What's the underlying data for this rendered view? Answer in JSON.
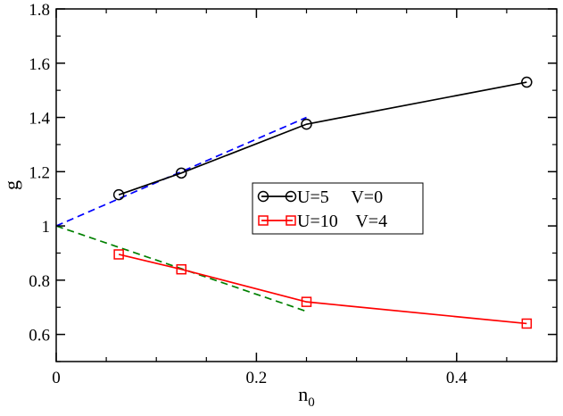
{
  "chart_data": {
    "type": "line",
    "xlabel": "n",
    "xlabel_sub": "0",
    "ylabel": "g",
    "xlim": [
      0,
      0.5
    ],
    "ylim": [
      0.5,
      1.8
    ],
    "x_ticks": [
      0,
      0.2,
      0.4
    ],
    "x_tick_labels": [
      "0",
      "0.2",
      "0.4"
    ],
    "x_minor_step": 0.05,
    "y_ticks": [
      0.6,
      0.8,
      1.0,
      1.2,
      1.4,
      1.6,
      1.8
    ],
    "y_tick_labels": [
      "0.6",
      "0.8",
      "1",
      "1.2",
      "1.4",
      "1.6",
      "1.8"
    ],
    "y_minor_step": 0.1,
    "grid": false,
    "legend_position": "center-right",
    "series": [
      {
        "name": "U=5     V=0",
        "color": "#000000",
        "marker": "circle",
        "x": [
          0.0625,
          0.125,
          0.25,
          0.47
        ],
        "y": [
          1.115,
          1.195,
          1.375,
          1.53
        ]
      },
      {
        "name": "U=10    V=4",
        "color": "#ff0000",
        "marker": "square",
        "x": [
          0.0625,
          0.125,
          0.25,
          0.47
        ],
        "y": [
          0.895,
          0.84,
          0.72,
          0.64
        ]
      }
    ],
    "guide_lines": [
      {
        "color": "#0000ff",
        "style": "dashed",
        "x": [
          0,
          0.25
        ],
        "y": [
          1.0,
          1.4
        ]
      },
      {
        "color": "#008000",
        "style": "dashed",
        "x": [
          0,
          0.25
        ],
        "y": [
          1.0,
          0.685
        ]
      }
    ]
  }
}
